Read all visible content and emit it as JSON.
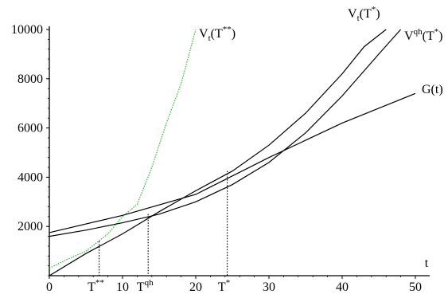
{
  "chart_data": {
    "type": "line",
    "xlim": [
      0,
      50
    ],
    "ylim": [
      0,
      10000
    ],
    "x_ticks": [
      {
        "value": 0,
        "label": "0"
      },
      {
        "value": 10,
        "label": "10"
      },
      {
        "value": 20,
        "label": "20"
      },
      {
        "value": 30,
        "label": "30"
      },
      {
        "value": 40,
        "label": "40"
      },
      {
        "value": 50,
        "label": "50"
      }
    ],
    "y_ticks": [
      {
        "value": 2000,
        "label": "2000"
      },
      {
        "value": 4000,
        "label": "4000"
      },
      {
        "value": 6000,
        "label": "6000"
      },
      {
        "value": 8000,
        "label": "8000"
      },
      {
        "value": 10000,
        "label": "10000"
      }
    ],
    "xlabel": "t",
    "grid": false,
    "series": [
      {
        "name": "Vt(T**)",
        "label_main": "V",
        "label_sub": "t",
        "label_paren": "(T",
        "label_sup": "**",
        "label_close": ")",
        "color": "#22bb22",
        "dash": "1.5,1.5",
        "x": [
          0,
          2,
          5,
          8,
          10,
          12,
          14,
          16,
          18,
          20
        ],
        "y": [
          300,
          600,
          1000,
          1700,
          2400,
          2900,
          4400,
          6200,
          7800,
          10000
        ]
      },
      {
        "name": "Vt(T*)",
        "label_main": "V",
        "label_sub": "t",
        "label_paren": "(T",
        "label_sup": "*",
        "label_close": ")",
        "color": "#000000",
        "dash": "",
        "x": [
          0,
          5,
          10,
          15,
          20,
          25,
          30,
          35,
          40,
          43,
          46
        ],
        "y": [
          0,
          900,
          1700,
          2600,
          3450,
          4250,
          5300,
          6600,
          8200,
          9300,
          10000
        ]
      },
      {
        "name": "Vqh(T*)",
        "label_main": "V",
        "label_sup_main": "qh",
        "label_paren": "(T",
        "label_sup": "*",
        "label_close": ")",
        "color": "#000000",
        "dash": "",
        "x": [
          0,
          5,
          10,
          15,
          20,
          25,
          30,
          35,
          40,
          45,
          48
        ],
        "y": [
          1600,
          1850,
          2150,
          2500,
          3000,
          3700,
          4600,
          5800,
          7300,
          9000,
          10000
        ]
      },
      {
        "name": "G(t)",
        "label_text": "G(t)",
        "color": "#000000",
        "dash": "",
        "x": [
          0,
          10,
          20,
          30,
          40,
          50
        ],
        "y": [
          1750,
          2450,
          3300,
          4800,
          6200,
          7400
        ]
      }
    ],
    "markers": [
      {
        "x": 6.8,
        "y": 1400,
        "label": "T",
        "sup": "**"
      },
      {
        "x": 13.5,
        "y": 2500,
        "label": "T",
        "sup": "qh"
      },
      {
        "x": 24.3,
        "y": 4250,
        "label": "T",
        "sup": "*"
      }
    ]
  }
}
